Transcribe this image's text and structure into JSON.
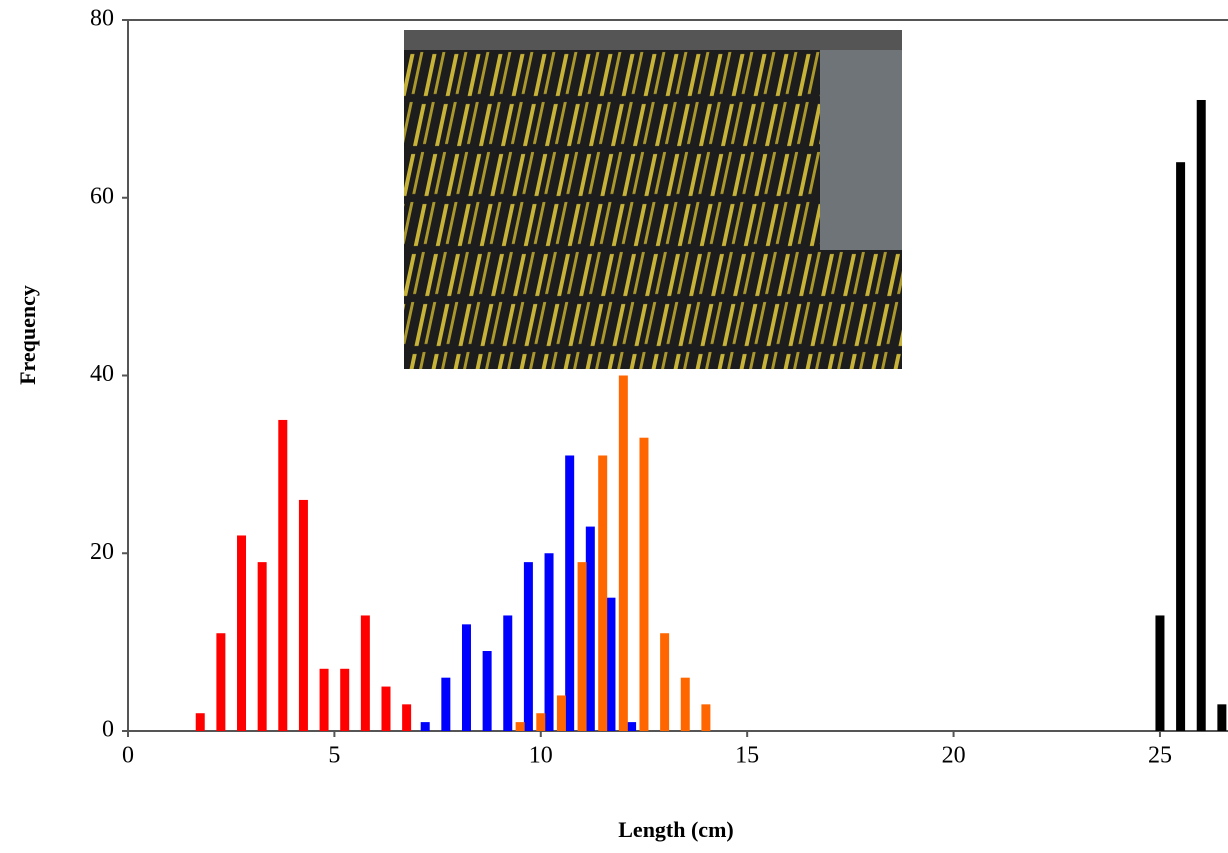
{
  "chart_data": {
    "type": "bar",
    "x_label": "Length (cm)",
    "y_label": "Frequency",
    "xlim": [
      0,
      26.6
    ],
    "ylim": [
      0,
      80
    ],
    "xticks": [
      0,
      5,
      10,
      15,
      20,
      25
    ],
    "yticks": [
      0,
      20,
      40,
      60,
      80
    ],
    "series": [
      {
        "color": "#ff0000",
        "x": [
          1.75,
          2.25,
          2.75,
          3.25,
          3.75,
          4.25,
          4.75,
          5.25,
          5.75,
          6.25,
          6.75
        ],
        "values": [
          2,
          11,
          22,
          19,
          35,
          26,
          7,
          7,
          13,
          5,
          3
        ]
      },
      {
        "color": "#0000ff",
        "x": [
          7.2,
          7.7,
          8.2,
          8.7,
          9.2,
          9.7,
          10.2,
          10.7,
          11.2,
          11.7,
          12.2
        ],
        "values": [
          1,
          6,
          12,
          9,
          13,
          19,
          20,
          31,
          23,
          15,
          1
        ]
      },
      {
        "color": "#ff6600",
        "x": [
          9.5,
          10,
          10.5,
          11,
          11.5,
          12,
          12.5,
          13,
          13.5,
          14
        ],
        "values": [
          1,
          2,
          4,
          19,
          31,
          40,
          33,
          11,
          6,
          3
        ]
      },
      {
        "color": "#000000",
        "x": [
          25,
          25.5,
          26,
          26.5
        ],
        "values": [
          13,
          64,
          71,
          3
        ]
      }
    ]
  }
}
